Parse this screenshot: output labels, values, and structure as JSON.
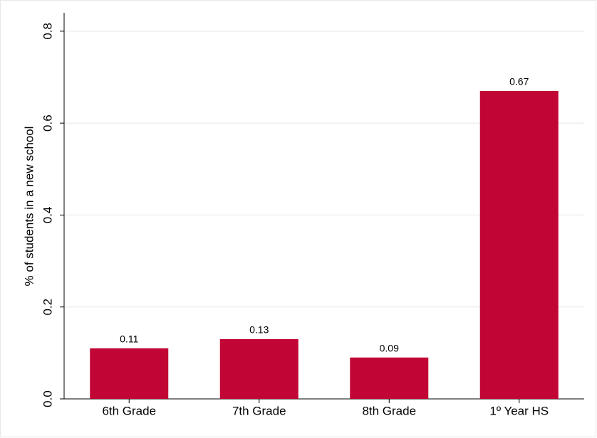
{
  "chart_data": {
    "type": "bar",
    "ylabel": "% of students in a new school",
    "categories": [
      "6th Grade",
      "7th Grade",
      "8th Grade",
      "1º Year HS"
    ],
    "values": [
      0.11,
      0.13,
      0.09,
      0.67
    ],
    "color": "#c10534",
    "ylim": [
      0,
      0.84
    ],
    "yticks": [
      {
        "value": 0,
        "label": "0.0"
      },
      0.2,
      0.4,
      0.6,
      0.8
    ],
    "grid": true
  }
}
